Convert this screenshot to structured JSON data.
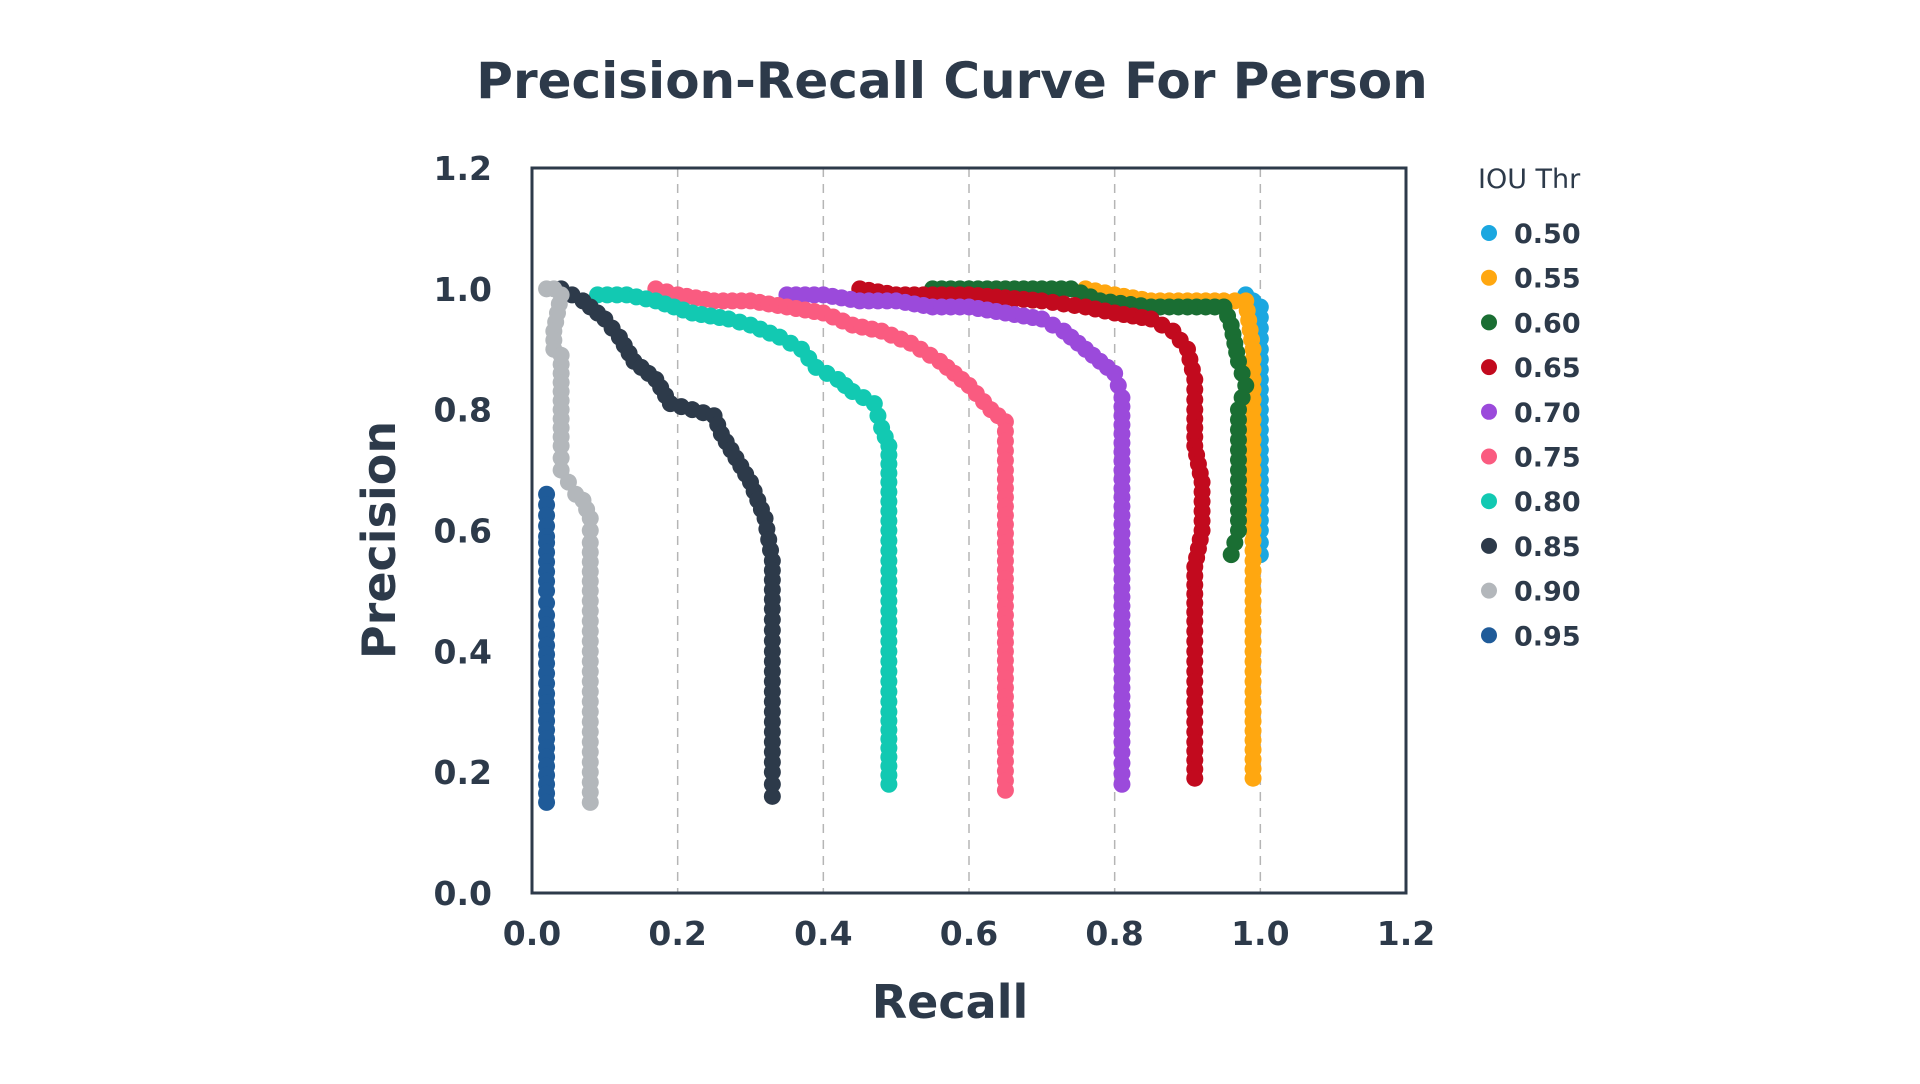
{
  "chart_data": {
    "type": "scatter",
    "title": "Precision-Recall Curve For Person",
    "xlabel": "Recall",
    "ylabel": "Precision",
    "xlim": [
      0.0,
      1.2
    ],
    "ylim": [
      0.0,
      1.2
    ],
    "xticks": [
      "0.0",
      "0.2",
      "0.4",
      "0.6",
      "0.8",
      "1.0",
      "1.2"
    ],
    "yticks": [
      "0.0",
      "0.2",
      "0.4",
      "0.6",
      "0.8",
      "1.0",
      "1.2"
    ],
    "grid": "vertical dashed",
    "legend": {
      "title": "IOU Thr",
      "position": "right"
    },
    "series": [
      {
        "name": "0.50",
        "color": "#1BA7E0",
        "points": [
          [
            0.98,
            0.99
          ],
          [
            0.99,
            0.98
          ],
          [
            1.0,
            0.97
          ],
          [
            1.0,
            0.9
          ],
          [
            1.0,
            0.8
          ],
          [
            1.0,
            0.7
          ],
          [
            1.0,
            0.6
          ],
          [
            1.0,
            0.56
          ]
        ]
      },
      {
        "name": "0.55",
        "color": "#FFA710",
        "points": [
          [
            0.76,
            1.0
          ],
          [
            0.8,
            0.99
          ],
          [
            0.85,
            0.98
          ],
          [
            0.9,
            0.98
          ],
          [
            0.95,
            0.98
          ],
          [
            0.98,
            0.98
          ],
          [
            0.99,
            0.9
          ],
          [
            0.99,
            0.8
          ],
          [
            0.99,
            0.7
          ],
          [
            0.99,
            0.6
          ],
          [
            0.99,
            0.5
          ],
          [
            0.99,
            0.4
          ],
          [
            0.99,
            0.3
          ],
          [
            0.99,
            0.19
          ]
        ]
      },
      {
        "name": "0.60",
        "color": "#1A6E33",
        "points": [
          [
            0.55,
            1.0
          ],
          [
            0.6,
            1.0
          ],
          [
            0.7,
            1.0
          ],
          [
            0.74,
            1.0
          ],
          [
            0.78,
            0.98
          ],
          [
            0.85,
            0.97
          ],
          [
            0.9,
            0.97
          ],
          [
            0.95,
            0.97
          ],
          [
            0.96,
            0.94
          ],
          [
            0.97,
            0.88
          ],
          [
            0.98,
            0.84
          ],
          [
            0.97,
            0.8
          ],
          [
            0.97,
            0.7
          ],
          [
            0.97,
            0.6
          ],
          [
            0.96,
            0.56
          ]
        ]
      },
      {
        "name": "0.65",
        "color": "#C20A1E",
        "points": [
          [
            0.45,
            1.0
          ],
          [
            0.5,
            0.99
          ],
          [
            0.6,
            0.99
          ],
          [
            0.7,
            0.98
          ],
          [
            0.76,
            0.97
          ],
          [
            0.8,
            0.96
          ],
          [
            0.85,
            0.95
          ],
          [
            0.88,
            0.93
          ],
          [
            0.9,
            0.9
          ],
          [
            0.91,
            0.85
          ],
          [
            0.91,
            0.8
          ],
          [
            0.91,
            0.74
          ],
          [
            0.92,
            0.68
          ],
          [
            0.92,
            0.6
          ],
          [
            0.91,
            0.54
          ],
          [
            0.91,
            0.45
          ],
          [
            0.91,
            0.35
          ],
          [
            0.91,
            0.25
          ],
          [
            0.91,
            0.19
          ]
        ]
      },
      {
        "name": "0.70",
        "color": "#9B4ADB",
        "points": [
          [
            0.35,
            0.99
          ],
          [
            0.4,
            0.99
          ],
          [
            0.45,
            0.98
          ],
          [
            0.5,
            0.98
          ],
          [
            0.55,
            0.97
          ],
          [
            0.6,
            0.97
          ],
          [
            0.65,
            0.96
          ],
          [
            0.7,
            0.95
          ],
          [
            0.73,
            0.93
          ],
          [
            0.76,
            0.9
          ],
          [
            0.78,
            0.88
          ],
          [
            0.8,
            0.86
          ],
          [
            0.81,
            0.82
          ],
          [
            0.81,
            0.7
          ],
          [
            0.81,
            0.55
          ],
          [
            0.81,
            0.4
          ],
          [
            0.81,
            0.25
          ],
          [
            0.81,
            0.18
          ]
        ]
      },
      {
        "name": "0.75",
        "color": "#FA5B80",
        "points": [
          [
            0.17,
            1.0
          ],
          [
            0.2,
            0.99
          ],
          [
            0.25,
            0.98
          ],
          [
            0.3,
            0.98
          ],
          [
            0.35,
            0.97
          ],
          [
            0.4,
            0.96
          ],
          [
            0.44,
            0.94
          ],
          [
            0.48,
            0.93
          ],
          [
            0.52,
            0.91
          ],
          [
            0.56,
            0.88
          ],
          [
            0.6,
            0.84
          ],
          [
            0.63,
            0.8
          ],
          [
            0.65,
            0.78
          ],
          [
            0.65,
            0.7
          ],
          [
            0.65,
            0.55
          ],
          [
            0.65,
            0.4
          ],
          [
            0.65,
            0.25
          ],
          [
            0.65,
            0.17
          ]
        ]
      },
      {
        "name": "0.80",
        "color": "#12C9B2",
        "points": [
          [
            0.09,
            0.99
          ],
          [
            0.13,
            0.99
          ],
          [
            0.17,
            0.98
          ],
          [
            0.22,
            0.96
          ],
          [
            0.27,
            0.95
          ],
          [
            0.3,
            0.94
          ],
          [
            0.34,
            0.92
          ],
          [
            0.37,
            0.9
          ],
          [
            0.39,
            0.87
          ],
          [
            0.42,
            0.85
          ],
          [
            0.44,
            0.83
          ],
          [
            0.47,
            0.81
          ],
          [
            0.48,
            0.77
          ],
          [
            0.49,
            0.74
          ],
          [
            0.49,
            0.68
          ],
          [
            0.49,
            0.6
          ],
          [
            0.49,
            0.5
          ],
          [
            0.49,
            0.4
          ],
          [
            0.49,
            0.3
          ],
          [
            0.49,
            0.18
          ]
        ]
      },
      {
        "name": "0.85",
        "color": "#2D3A4A",
        "points": [
          [
            0.04,
            1.0
          ],
          [
            0.07,
            0.98
          ],
          [
            0.1,
            0.95
          ],
          [
            0.12,
            0.92
          ],
          [
            0.14,
            0.88
          ],
          [
            0.17,
            0.85
          ],
          [
            0.19,
            0.81
          ],
          [
            0.22,
            0.8
          ],
          [
            0.25,
            0.79
          ],
          [
            0.26,
            0.76
          ],
          [
            0.28,
            0.72
          ],
          [
            0.3,
            0.68
          ],
          [
            0.31,
            0.65
          ],
          [
            0.32,
            0.62
          ],
          [
            0.33,
            0.55
          ],
          [
            0.33,
            0.47
          ],
          [
            0.33,
            0.4
          ],
          [
            0.33,
            0.3
          ],
          [
            0.33,
            0.2
          ],
          [
            0.33,
            0.16
          ]
        ]
      },
      {
        "name": "0.90",
        "color": "#B3B7BB",
        "points": [
          [
            0.02,
            1.0
          ],
          [
            0.03,
            1.0
          ],
          [
            0.04,
            0.99
          ],
          [
            0.03,
            0.93
          ],
          [
            0.03,
            0.9
          ],
          [
            0.04,
            0.89
          ],
          [
            0.04,
            0.86
          ],
          [
            0.04,
            0.74
          ],
          [
            0.04,
            0.7
          ],
          [
            0.05,
            0.68
          ],
          [
            0.06,
            0.66
          ],
          [
            0.07,
            0.65
          ],
          [
            0.08,
            0.62
          ],
          [
            0.08,
            0.58
          ],
          [
            0.08,
            0.5
          ],
          [
            0.08,
            0.4
          ],
          [
            0.08,
            0.3
          ],
          [
            0.08,
            0.2
          ],
          [
            0.08,
            0.15
          ]
        ]
      },
      {
        "name": "0.95",
        "color": "#1F5B99",
        "points": [
          [
            0.02,
            0.66
          ],
          [
            0.02,
            0.59
          ],
          [
            0.02,
            0.58
          ],
          [
            0.02,
            0.5
          ],
          [
            0.02,
            0.46
          ],
          [
            0.02,
            0.41
          ],
          [
            0.02,
            0.38
          ],
          [
            0.02,
            0.33
          ],
          [
            0.02,
            0.3
          ],
          [
            0.02,
            0.27
          ],
          [
            0.02,
            0.24
          ],
          [
            0.02,
            0.21
          ],
          [
            0.02,
            0.18
          ],
          [
            0.02,
            0.15
          ]
        ]
      }
    ]
  }
}
